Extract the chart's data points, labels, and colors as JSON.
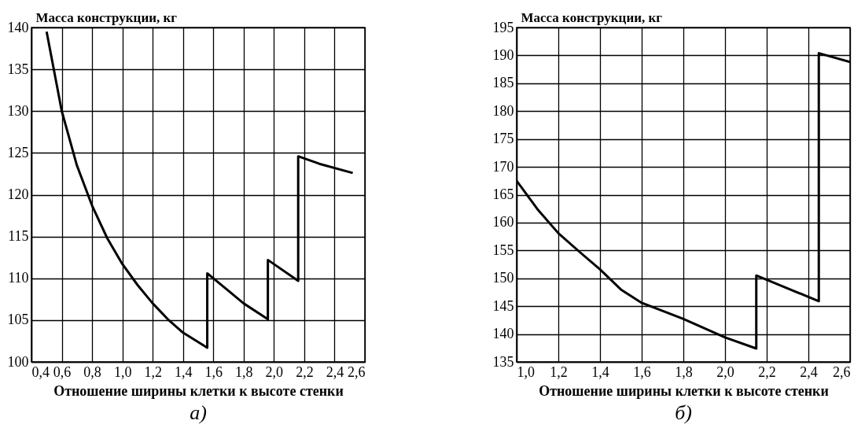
{
  "chart_data": [
    {
      "type": "line",
      "ylabel": "Масса конструкции, кг",
      "xlabel": "Отношение ширины клетки к высоте стенки",
      "annotations": [
        "а)"
      ],
      "grid": true,
      "marker": "none",
      "line_style": "solid",
      "x": [
        0.5,
        0.6,
        0.7,
        0.8,
        0.9,
        1.0,
        1.1,
        1.2,
        1.3,
        1.4,
        1.56,
        1.56,
        1.7,
        1.8,
        1.96,
        1.96,
        2.16,
        2.16,
        2.3,
        2.52
      ],
      "series": [
        {
          "color": "#000000",
          "values": [
            139.5,
            130,
            123.5,
            118.7,
            114.8,
            111.7,
            109.2,
            107,
            105.1,
            103.5,
            101.7,
            110.6,
            108.5,
            107.0,
            105.1,
            112.2,
            109.7,
            124.6,
            123.7,
            122.6
          ]
        }
      ],
      "xlim": [
        0.4,
        2.6
      ],
      "ylim": [
        100,
        140
      ],
      "xticks": [
        {
          "value": 0.4,
          "label": "0,4"
        },
        {
          "value": 0.6,
          "label": "0,6"
        },
        {
          "value": 0.8,
          "label": "0,8"
        },
        {
          "value": 1.0,
          "label": "1,0"
        },
        {
          "value": 1.2,
          "label": "1,2"
        },
        {
          "value": 1.4,
          "label": "1,4"
        },
        {
          "value": 1.6,
          "label": "1,6"
        },
        {
          "value": 1.8,
          "label": "1,8"
        },
        {
          "value": 2.0,
          "label": "2,0"
        },
        {
          "value": 2.2,
          "label": "2,2"
        },
        {
          "value": 2.4,
          "label": "2,4"
        },
        {
          "value": 2.6,
          "label": "2,6"
        }
      ],
      "yticks": [
        100,
        105,
        110,
        115,
        120,
        125,
        130,
        135,
        140
      ]
    },
    {
      "type": "line",
      "ylabel": "Масса конструкции, кг",
      "xlabel": "Отношение ширины клетки к высоте стенки",
      "annotations": [
        "б)"
      ],
      "grid": true,
      "marker": "none",
      "line_style": "solid",
      "x": [
        1.0,
        1.1,
        1.2,
        1.3,
        1.4,
        1.5,
        1.6,
        1.8,
        2.0,
        2.15,
        2.15,
        2.45,
        2.45,
        2.6
      ],
      "series": [
        {
          "color": "#000000",
          "values": [
            167.5,
            162.4,
            158.1,
            154.8,
            151.6,
            148,
            145.6,
            142.7,
            139.4,
            137.4,
            150.5,
            145.9,
            190.4,
            188.8
          ]
        }
      ],
      "xlim": [
        1.0,
        2.6
      ],
      "ylim": [
        135,
        195
      ],
      "xticks": [
        {
          "value": 1.0,
          "label": "1,0"
        },
        {
          "value": 1.2,
          "label": "1,2"
        },
        {
          "value": 1.4,
          "label": "1,4"
        },
        {
          "value": 1.6,
          "label": "1,6"
        },
        {
          "value": 1.8,
          "label": "1,8"
        },
        {
          "value": 2.0,
          "label": "2,0"
        },
        {
          "value": 2.2,
          "label": "2,2"
        },
        {
          "value": 2.4,
          "label": "2,4"
        },
        {
          "value": 2.6,
          "label": "2,6"
        }
      ],
      "yticks": [
        135,
        140,
        145,
        150,
        155,
        160,
        165,
        170,
        175,
        180,
        185,
        190,
        195
      ]
    }
  ]
}
